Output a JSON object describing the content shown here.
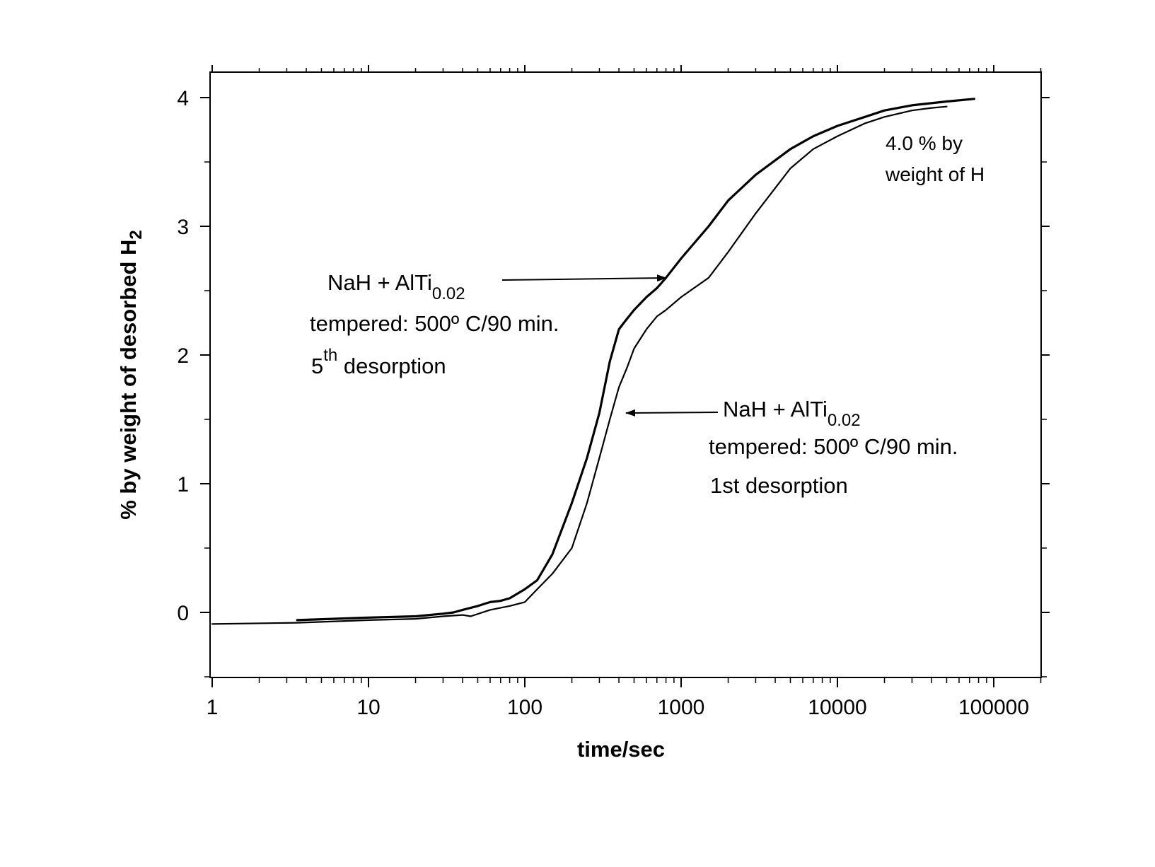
{
  "chart_data": {
    "type": "line",
    "xscale": "log",
    "xlim": [
      1,
      200000
    ],
    "ylim": [
      -0.5,
      4.2
    ],
    "xticks": [
      {
        "value": 1,
        "label": "1"
      },
      {
        "value": 10,
        "label": "10"
      },
      {
        "value": 100,
        "label": "100"
      },
      {
        "value": 1000,
        "label": "1000"
      },
      {
        "value": 10000,
        "label": "10000"
      },
      {
        "value": 100000,
        "label": "100000"
      }
    ],
    "yticks": [
      {
        "value": 0,
        "label": "0"
      },
      {
        "value": 1,
        "label": "1"
      },
      {
        "value": 2,
        "label": "2"
      },
      {
        "value": 3,
        "label": "3"
      },
      {
        "value": 4,
        "label": "4"
      }
    ],
    "xlabel": "time/sec",
    "ylabel_main": "% by weight of desorbed H",
    "ylabel_sub": "2",
    "series": [
      {
        "id": "fifth",
        "stroke_width": 3.2,
        "x": [
          3.5,
          10,
          20,
          30,
          35,
          40,
          50,
          60,
          70,
          80,
          100,
          120,
          150,
          200,
          250,
          300,
          350,
          400,
          430,
          500,
          600,
          700,
          800,
          1000,
          1500,
          2000,
          3000,
          5000,
          7000,
          10000,
          15000,
          20000,
          30000,
          50000,
          75000
        ],
        "y": [
          -0.06,
          -0.04,
          -0.03,
          -0.01,
          0.0,
          0.02,
          0.05,
          0.08,
          0.09,
          0.11,
          0.18,
          0.25,
          0.45,
          0.85,
          1.2,
          1.55,
          1.95,
          2.2,
          2.25,
          2.35,
          2.45,
          2.52,
          2.6,
          2.75,
          3.0,
          3.2,
          3.4,
          3.6,
          3.7,
          3.78,
          3.85,
          3.9,
          3.94,
          3.97,
          3.99
        ]
      },
      {
        "id": "first",
        "stroke_width": 2.2,
        "x": [
          1,
          3.5,
          10,
          20,
          30,
          40,
          45,
          60,
          80,
          100,
          120,
          150,
          200,
          250,
          300,
          350,
          400,
          450,
          500,
          600,
          700,
          800,
          1000,
          1500,
          2000,
          3000,
          5000,
          7000,
          10000,
          15000,
          20000,
          30000,
          40000,
          50000
        ],
        "y": [
          -0.09,
          -0.08,
          -0.06,
          -0.05,
          -0.03,
          -0.02,
          -0.03,
          0.02,
          0.05,
          0.08,
          0.18,
          0.3,
          0.5,
          0.85,
          1.2,
          1.5,
          1.75,
          1.9,
          2.05,
          2.2,
          2.3,
          2.35,
          2.45,
          2.6,
          2.8,
          3.1,
          3.45,
          3.6,
          3.7,
          3.8,
          3.85,
          3.9,
          3.92,
          3.93
        ]
      }
    ]
  },
  "annotations": {
    "fifth_line1_main": "NaH + AlTi",
    "fifth_line1_sub": "0.02",
    "fifth_line2": "tempered: 500º C/90 min.",
    "fifth_line3_main": "5",
    "fifth_line3_sup": "th",
    "fifth_line3_rest": " desorption",
    "first_line1_main": "NaH + AlTi",
    "first_line1_sub": "0.02",
    "first_line2": "tempered: 500º C/90 min.",
    "first_line3": "1st desorption",
    "final_line1": "4.0 % by",
    "final_line2": "weight of H"
  }
}
